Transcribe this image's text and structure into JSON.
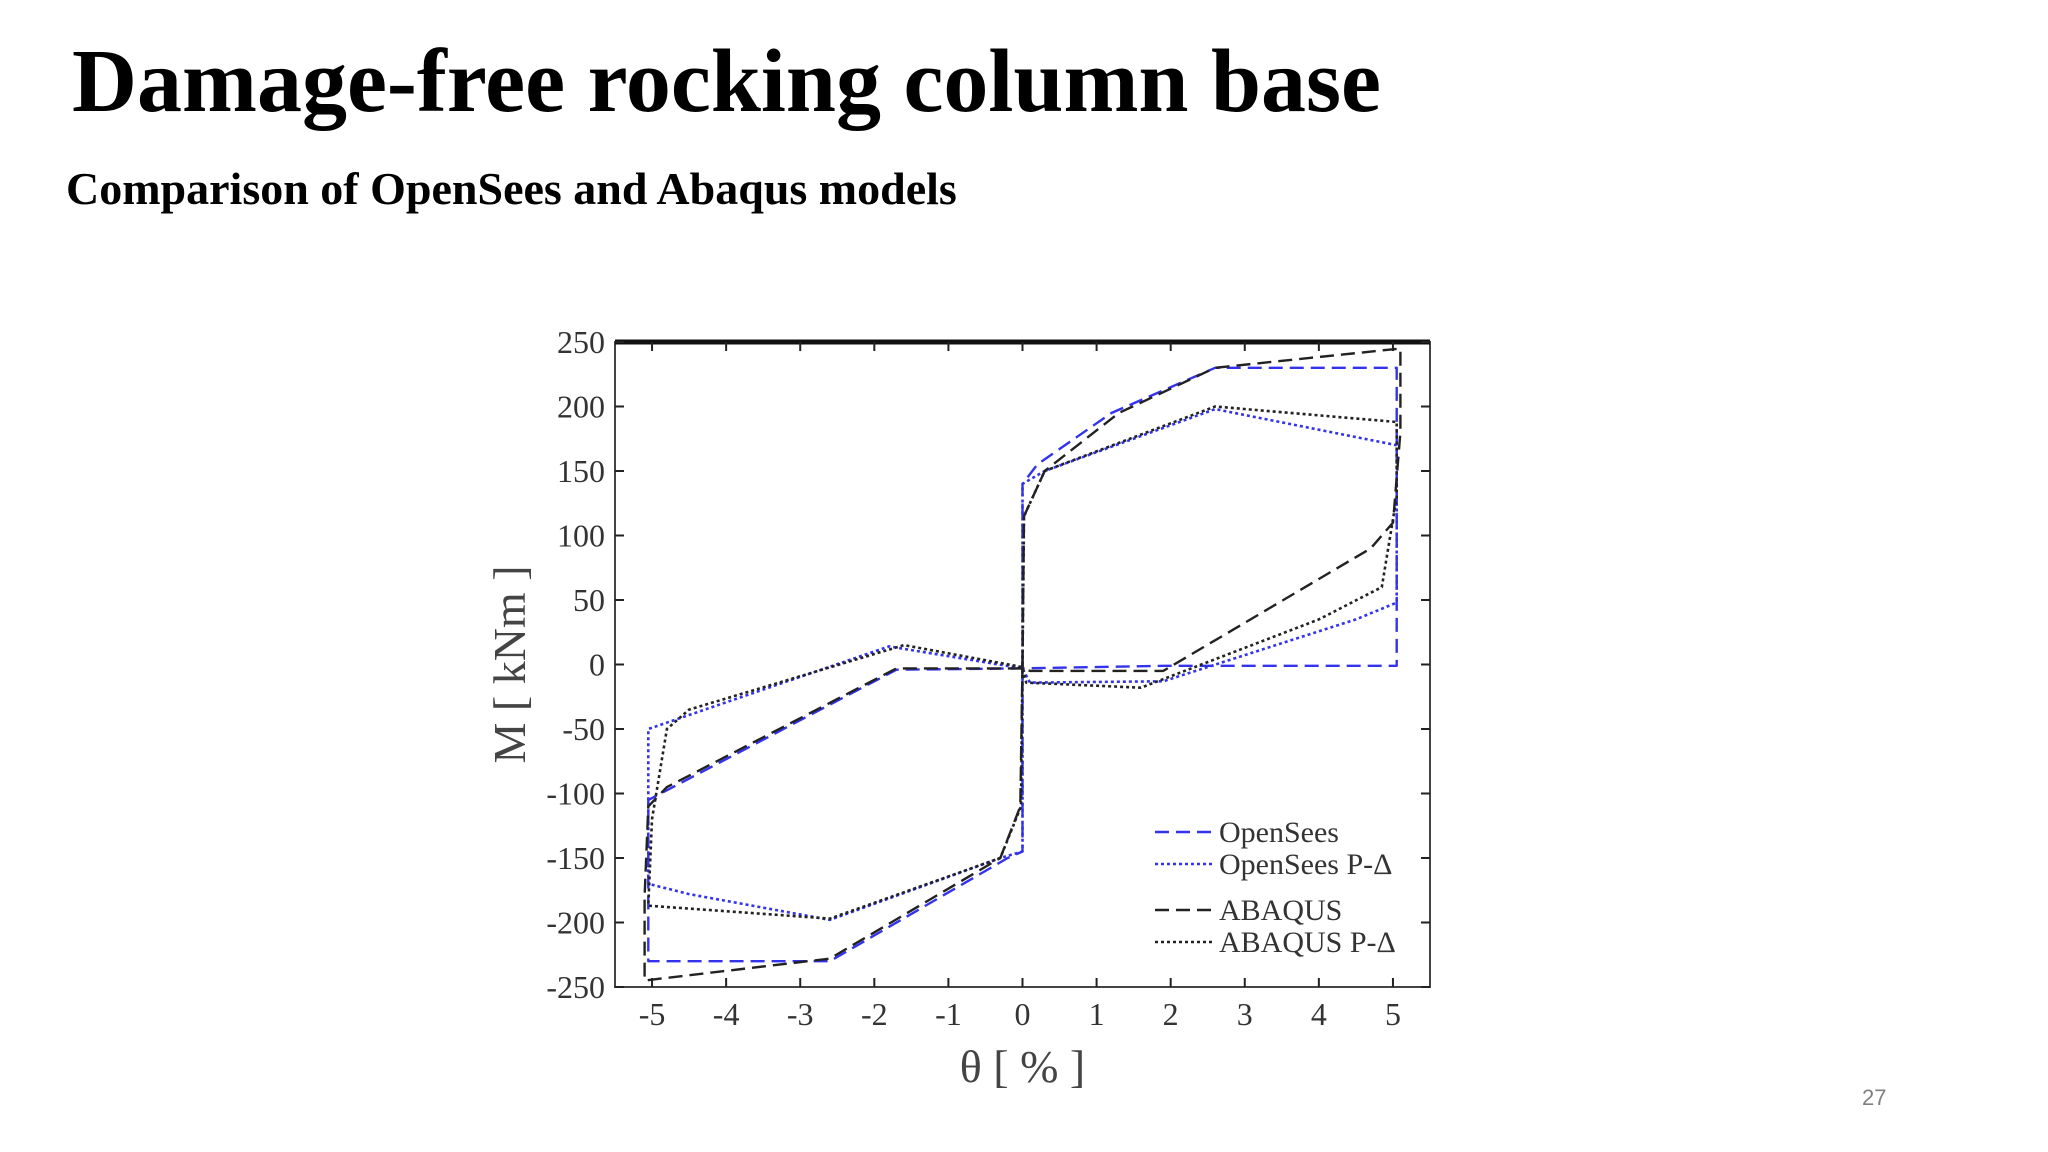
{
  "slide": {
    "title": "Damage-free rocking column base",
    "subtitle": "Comparison of OpenSees and Abaqus models",
    "page_number": "27"
  },
  "chart_data": {
    "type": "line",
    "xlabel": "θ [ % ]",
    "ylabel": "M [ kNm ]",
    "xlim": [
      -5.5,
      5.5
    ],
    "ylim": [
      -250,
      250
    ],
    "xticks": [
      -5,
      -4,
      -3,
      -2,
      -1,
      0,
      1,
      2,
      3,
      4,
      5
    ],
    "yticks": [
      250,
      200,
      150,
      100,
      50,
      0,
      -50,
      -100,
      -150,
      -200,
      -250
    ],
    "grid": false,
    "legend_position": "bottom-right",
    "series": [
      {
        "name": "OpenSees",
        "color": "#3333ee",
        "dash": "dashed",
        "x": [
          0,
          0,
          0.2,
          1.2,
          2.6,
          5.05,
          5.05,
          1.9,
          0,
          -1.7,
          -5.05,
          -5.05,
          -2.6,
          -0.2,
          0,
          0
        ],
        "y": [
          0,
          140,
          155,
          195,
          230,
          230,
          -1,
          -1,
          -3,
          -4,
          -105,
          -230,
          -230,
          -150,
          -145,
          0
        ]
      },
      {
        "name": "OpenSees P-Δ",
        "color": "#3333ee",
        "dash": "dotted",
        "x": [
          0,
          0,
          0.3,
          2.6,
          5.05,
          5.05,
          4.5,
          1.9,
          0.1,
          0,
          -1.8,
          -5.05,
          -5.05,
          -4.5,
          -2.6,
          -0.3,
          0,
          0
        ],
        "y": [
          0,
          140,
          150,
          198,
          170,
          48,
          35,
          -13,
          -14,
          -3,
          14,
          -50,
          -170,
          -178,
          -198,
          -150,
          -145,
          0
        ]
      },
      {
        "name": "ABAQUS",
        "color": "#222222",
        "dash": "dashed",
        "x": [
          0,
          0.02,
          0.3,
          1.3,
          2.6,
          5.1,
          5.1,
          5.0,
          4.7,
          1.9,
          0.1,
          0,
          -1.7,
          -4.8,
          -5.05,
          -5.1,
          -5.1,
          -2.6,
          -0.3,
          -0.03,
          0
        ],
        "y": [
          0,
          115,
          150,
          195,
          230,
          245,
          180,
          110,
          90,
          -5,
          -5,
          -3,
          -3,
          -95,
          -110,
          -180,
          -245,
          -228,
          -150,
          -110,
          0
        ],
        "hidden_y": [],
        "closed": false
      },
      {
        "name": "ABAQUS P-Δ",
        "color": "#222222",
        "dash": "dotted",
        "x": [
          0,
          0.02,
          0.3,
          2.6,
          5.05,
          5.05,
          4.85,
          4.0,
          1.6,
          0.05,
          0,
          -1.6,
          -4.5,
          -4.8,
          -5.0,
          -5.05,
          -2.6,
          -0.3,
          -0.02,
          0
        ],
        "y": [
          0,
          115,
          150,
          200,
          188,
          130,
          60,
          35,
          -18,
          -14,
          -2,
          15,
          -35,
          -50,
          -120,
          -187,
          -197,
          -150,
          -110,
          0
        ]
      }
    ]
  }
}
